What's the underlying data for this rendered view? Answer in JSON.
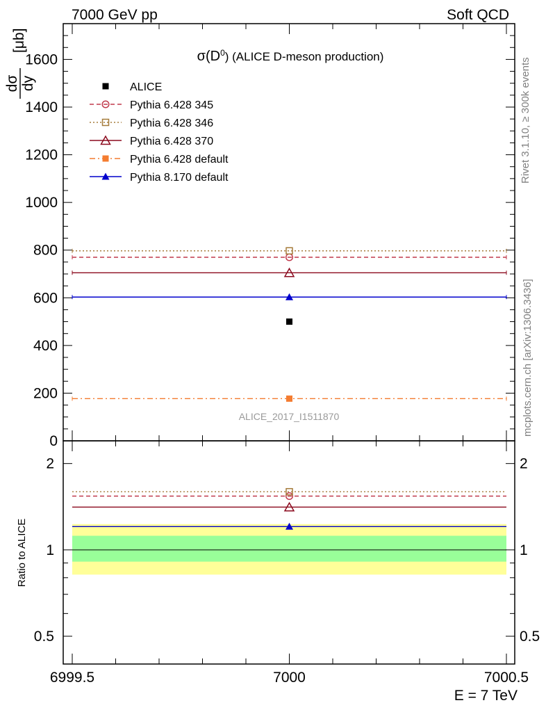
{
  "header": {
    "left": "7000 GeV pp",
    "right": "Soft QCD"
  },
  "side_text": {
    "rivet": "Rivet 3.1.10, ≥ 300k events",
    "mcplots": "mcplots.cern.ch [arXiv:1306.3436]"
  },
  "chart_data": [
    {
      "type": "scatter",
      "panel": "main",
      "title": "σ(D⁰) (ALICE D-meson production)",
      "title_main": "σ(D",
      "title_sup": "0",
      "title_rest": ") (ALICE D-meson production)",
      "ylabel": "dσ/dy [μb]",
      "ylabel_parts": {
        "num": "dσ",
        "den": "dy",
        "unit": "[μb]"
      },
      "watermark": "ALICE_2017_I1511870",
      "xlim": [
        6999.5,
        7000.5
      ],
      "ylim": [
        0,
        1750
      ],
      "y_ticks": [
        0,
        200,
        400,
        600,
        800,
        1000,
        1200,
        1400,
        1600
      ],
      "y_tick_labels": [
        "0",
        "200",
        "400",
        "600",
        "800",
        "1000",
        "1200",
        "1400",
        "1600"
      ],
      "legend_position": "top-left",
      "series": [
        {
          "name": "ALICE",
          "x": [
            7000
          ],
          "y": [
            500
          ],
          "color": "#000000",
          "marker": "filled-square",
          "line": "none"
        },
        {
          "name": "Pythia 6.428 345",
          "x": [
            7000
          ],
          "y": [
            770
          ],
          "color": "#c0394b",
          "marker": "open-circle",
          "line": "dashed"
        },
        {
          "name": "Pythia 6.428 346",
          "x": [
            7000
          ],
          "y": [
            797
          ],
          "color": "#a57b3a",
          "marker": "open-square",
          "line": "dotted"
        },
        {
          "name": "Pythia 6.428 370",
          "x": [
            7000
          ],
          "y": [
            705
          ],
          "color": "#8b0a1e",
          "marker": "open-triangle",
          "line": "solid"
        },
        {
          "name": "Pythia 6.428 default",
          "x": [
            7000
          ],
          "y": [
            177
          ],
          "color": "#f47c30",
          "marker": "filled-square",
          "line": "dashdot"
        },
        {
          "name": "Pythia 8.170 default",
          "x": [
            7000
          ],
          "y": [
            603
          ],
          "color": "#0000cc",
          "marker": "filled-triangle",
          "line": "solid"
        }
      ]
    },
    {
      "type": "scatter",
      "panel": "ratio",
      "ylabel": "Ratio to ALICE",
      "xlabel": "E = 7 TeV",
      "xlim": [
        6999.5,
        7000.5
      ],
      "x_ticks": [
        6999.5,
        7000,
        7000.5
      ],
      "x_tick_labels": [
        "6999.5",
        "7000",
        "7000.5"
      ],
      "ylim": [
        0.4,
        2.4
      ],
      "y_scale": "log",
      "y_ticks": [
        0.5,
        1,
        2
      ],
      "y_tick_labels": [
        "0.5",
        "1",
        "2"
      ],
      "bands": {
        "inner": [
          0.91,
          1.12
        ],
        "outer": [
          0.82,
          1.23
        ],
        "inner_color": "#99ff99",
        "outer_color": "#ffff99"
      },
      "series": [
        {
          "name": "Pythia 6.428 345",
          "x": [
            7000
          ],
          "y": [
            1.54
          ],
          "color": "#c0394b",
          "marker": "open-circle",
          "line": "dashed"
        },
        {
          "name": "Pythia 6.428 346",
          "x": [
            7000
          ],
          "y": [
            1.595
          ],
          "color": "#a57b3a",
          "marker": "open-square",
          "line": "dotted"
        },
        {
          "name": "Pythia 6.428 370",
          "x": [
            7000
          ],
          "y": [
            1.41
          ],
          "color": "#8b0a1e",
          "marker": "open-triangle",
          "line": "solid"
        },
        {
          "name": "Pythia 8.170 default",
          "x": [
            7000
          ],
          "y": [
            1.206
          ],
          "color": "#0000cc",
          "marker": "filled-triangle",
          "line": "solid"
        }
      ]
    }
  ]
}
